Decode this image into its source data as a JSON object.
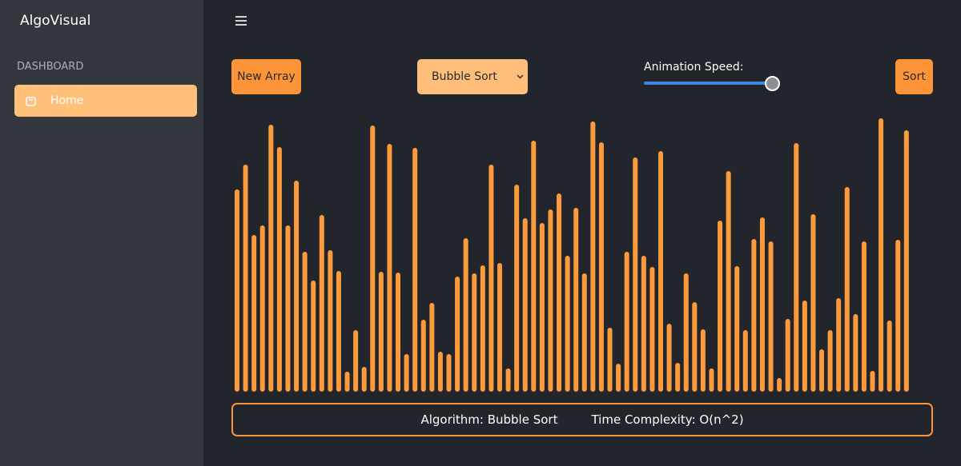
{
  "sidebar": {
    "brand": "AlgoVisual",
    "section": "DASHBOARD",
    "items": [
      "Home"
    ]
  },
  "controls": {
    "new_array": "New Array",
    "algorithm": "Bubble Sort",
    "speed_label": "Animation Speed:",
    "sort": "Sort"
  },
  "array": {
    "values": [
      253,
      284,
      196,
      208,
      334,
      306,
      208,
      264,
      175,
      139,
      221,
      177,
      151,
      25,
      77,
      31,
      333,
      150,
      310,
      149,
      47,
      305,
      90,
      111,
      50,
      47,
      144,
      192,
      148,
      158,
      284,
      161,
      29,
      259,
      217,
      314,
      211,
      228,
      248,
      170,
      230,
      148,
      338,
      312,
      80,
      35,
      175,
      293,
      170,
      156,
      301,
      85,
      36,
      148,
      112,
      78,
      29,
      214,
      276,
      157,
      77,
      191,
      218,
      188,
      17,
      91,
      311,
      114,
      222,
      53,
      77,
      117,
      256,
      97,
      188,
      26,
      342,
      89,
      190,
      327
    ],
    "color": "#fd9a3b"
  },
  "footer": {
    "algorithm": "Algorithm: Bubble Sort",
    "complexity": "Time Complexity: O(n^2)"
  }
}
